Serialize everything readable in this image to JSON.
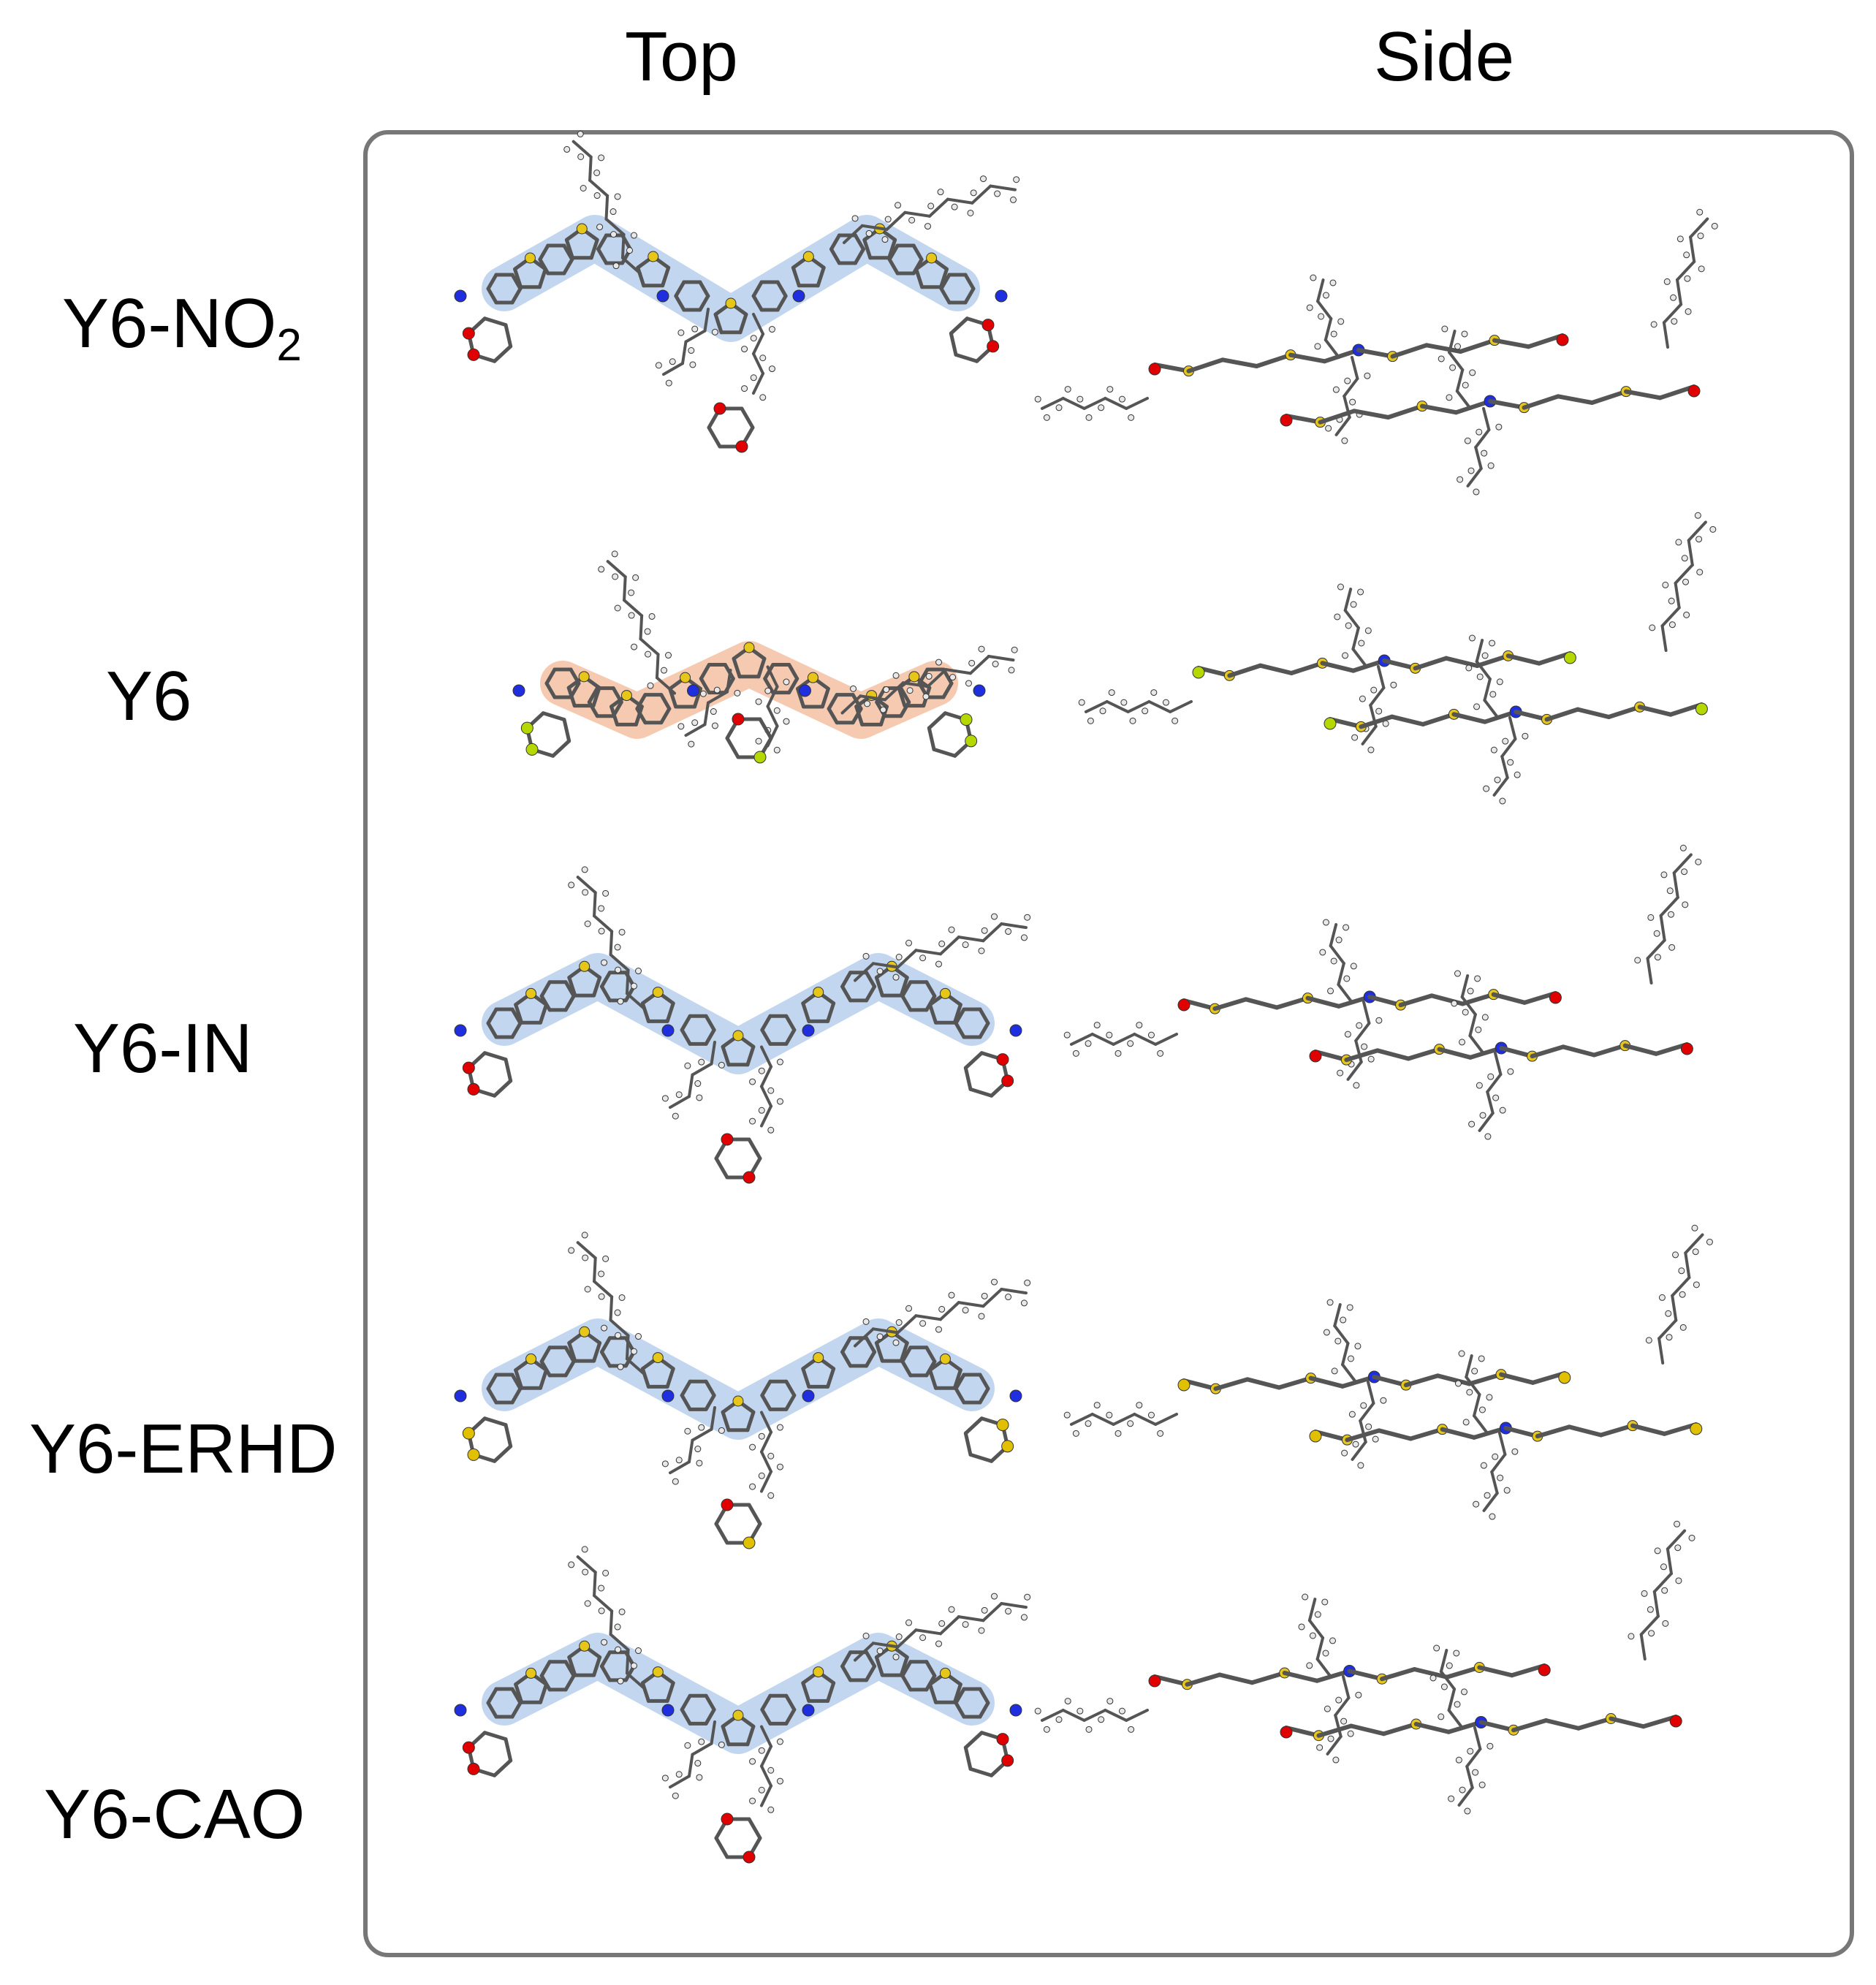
{
  "column_headers": {
    "top": "Top",
    "side": "Side"
  },
  "rows": [
    {
      "label": "Y6-NO",
      "subscript": "2",
      "highlight": "#a9c4e8",
      "end_atom": "#e00000"
    },
    {
      "label": "Y6",
      "subscript": "",
      "highlight": "#f2b48f",
      "end_atom": "#b5d900"
    },
    {
      "label": "Y6-IN",
      "subscript": "",
      "highlight": "#a9c4e8",
      "end_atom": "#e00000"
    },
    {
      "label": "Y6-ERHD",
      "subscript": "",
      "highlight": "#a9c4e8",
      "end_atom": "#e0c000"
    },
    {
      "label": "Y6-CAO",
      "subscript": "",
      "highlight": "#a9c4e8",
      "end_atom": "#e00000"
    }
  ],
  "atom_colors": {
    "carbon": "#555555",
    "hydrogen": "#e8e8e8",
    "sulfur": "#e6c619",
    "nitrogen": "#1f2fe0",
    "oxygen": "#e00000",
    "fluorine": "#b5d900"
  },
  "frame_color": "#777777"
}
